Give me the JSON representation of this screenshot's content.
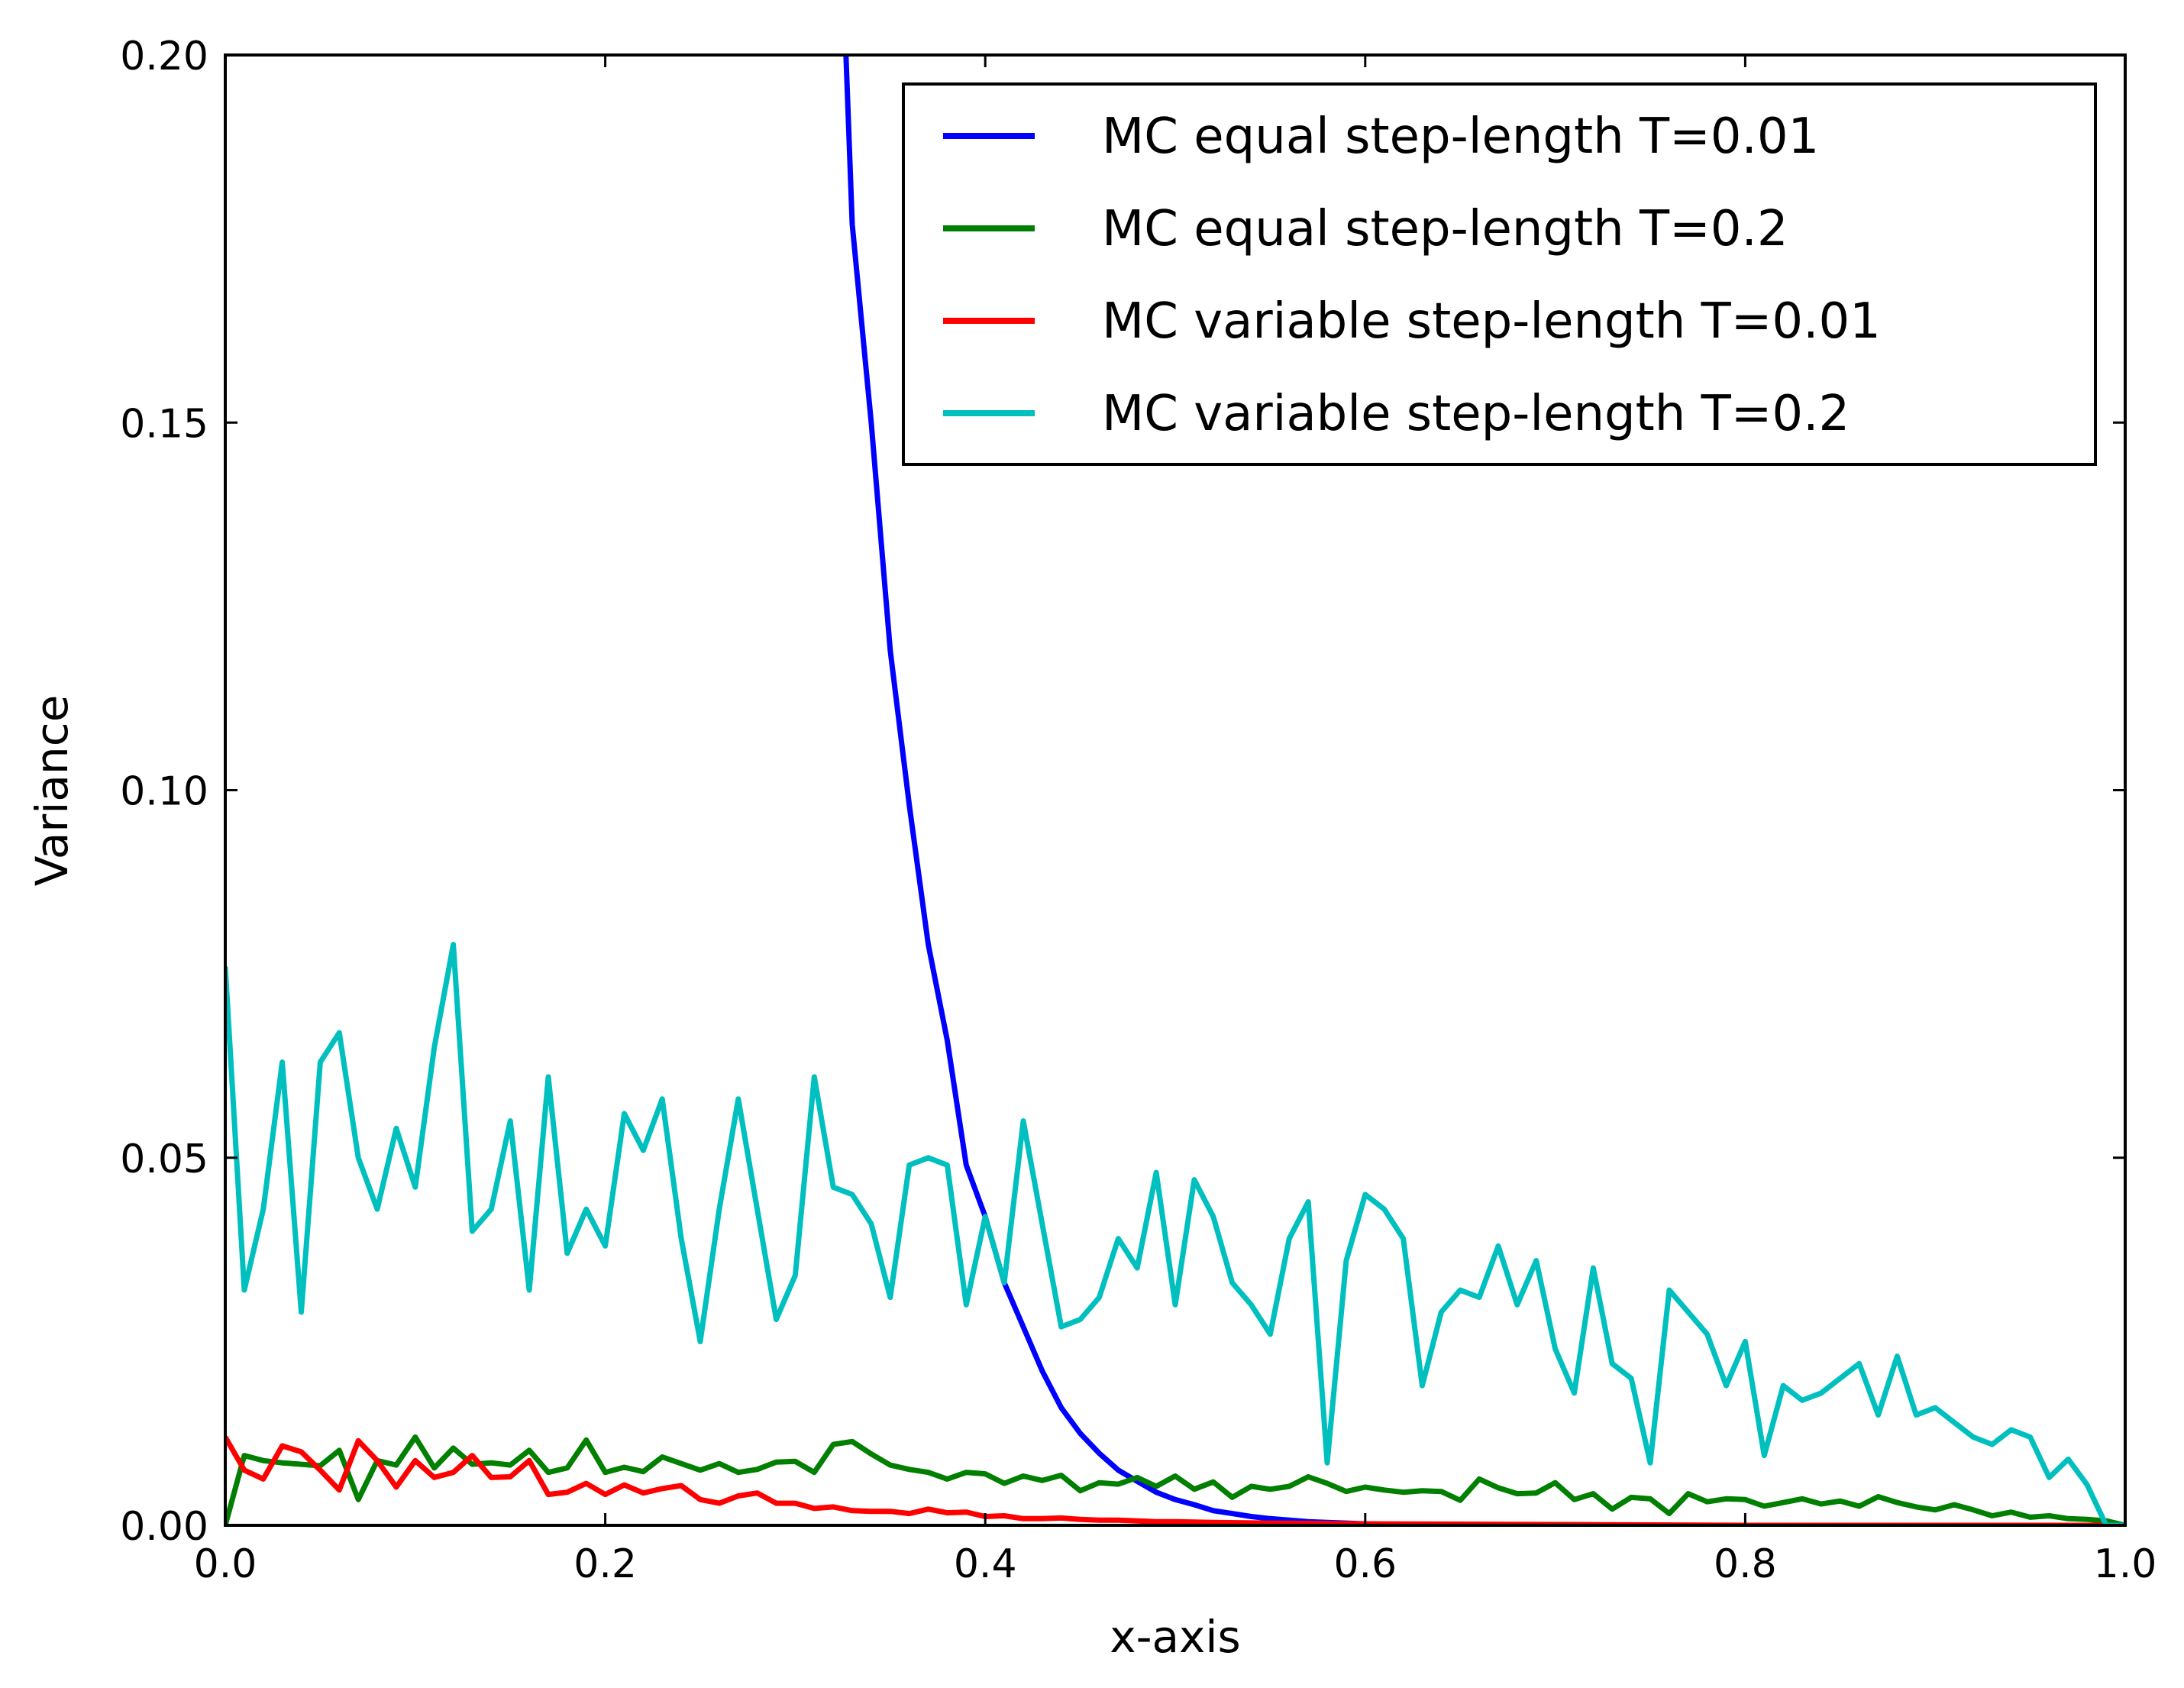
{
  "chart_data": {
    "type": "line",
    "title": "",
    "xlabel": "x-axis",
    "ylabel": "Variance",
    "xlim": [
      0.0,
      1.0
    ],
    "ylim": [
      0.0,
      0.2
    ],
    "x_ticks": [
      "0.0",
      "0.2",
      "0.4",
      "0.6",
      "0.8",
      "1.0"
    ],
    "y_ticks": [
      "0.00",
      "0.05",
      "0.10",
      "0.15",
      "0.20"
    ],
    "grid": false,
    "legend_position": "top-right",
    "series": [
      {
        "name": "MC equal step-length T=0.01",
        "color": "#0000ff",
        "x": [
          0.3267,
          0.33,
          0.34,
          0.35,
          0.36,
          0.37,
          0.38,
          0.39,
          0.4,
          0.41,
          0.42,
          0.43,
          0.44,
          0.45,
          0.46,
          0.47,
          0.48,
          0.49,
          0.5,
          0.51,
          0.52,
          0.53,
          0.54,
          0.55,
          0.56,
          0.57,
          0.58,
          0.59,
          0.6,
          0.62,
          0.65,
          0.7,
          0.8,
          0.9,
          1.0
        ],
        "y": [
          0.2,
          0.177,
          0.15,
          0.119,
          0.098,
          0.079,
          0.066,
          0.049,
          0.042,
          0.033,
          0.027,
          0.021,
          0.016,
          0.0125,
          0.0098,
          0.0075,
          0.006,
          0.0045,
          0.0035,
          0.0028,
          0.002,
          0.0016,
          0.0012,
          0.0009,
          0.0007,
          0.0005,
          0.0004,
          0.0003,
          0.0002,
          0.0001,
          5e-05,
          0.0,
          0.0,
          0.0,
          0.0
        ]
      },
      {
        "name": "MC equal step-length T=0.2",
        "color": "#007f00",
        "x": [
          0.0,
          0.01,
          0.02,
          0.03,
          0.04,
          0.05,
          0.06,
          0.07,
          0.08,
          0.09,
          0.1,
          0.11,
          0.12,
          0.13,
          0.14,
          0.15,
          0.16,
          0.17,
          0.18,
          0.19,
          0.2,
          0.21,
          0.22,
          0.23,
          0.24,
          0.25,
          0.26,
          0.27,
          0.28,
          0.29,
          0.3,
          0.31,
          0.32,
          0.33,
          0.34,
          0.35,
          0.36,
          0.37,
          0.38,
          0.39,
          0.4,
          0.41,
          0.42,
          0.43,
          0.44,
          0.45,
          0.46,
          0.47,
          0.48,
          0.49,
          0.5,
          0.51,
          0.52,
          0.53,
          0.54,
          0.55,
          0.56,
          0.57,
          0.58,
          0.59,
          0.6,
          0.61,
          0.62,
          0.63,
          0.64,
          0.65,
          0.66,
          0.67,
          0.68,
          0.69,
          0.7,
          0.71,
          0.72,
          0.73,
          0.74,
          0.75,
          0.76,
          0.77,
          0.78,
          0.79,
          0.8,
          0.81,
          0.82,
          0.83,
          0.84,
          0.85,
          0.86,
          0.87,
          0.88,
          0.89,
          0.9,
          0.91,
          0.92,
          0.93,
          0.94,
          0.95,
          0.96,
          0.97,
          0.98,
          0.99,
          1.0
        ],
        "y": [
          0.0,
          0.0095,
          0.0088,
          0.0085,
          0.0083,
          0.0081,
          0.0102,
          0.0035,
          0.0088,
          0.0082,
          0.012,
          0.0078,
          0.0105,
          0.0083,
          0.0085,
          0.0082,
          0.0102,
          0.0072,
          0.0078,
          0.0116,
          0.0072,
          0.0079,
          0.0073,
          0.0093,
          0.0084,
          0.0075,
          0.0084,
          0.0072,
          0.0076,
          0.0086,
          0.0087,
          0.0072,
          0.011,
          0.0114,
          0.0097,
          0.0082,
          0.0076,
          0.0072,
          0.0063,
          0.0072,
          0.007,
          0.0057,
          0.0067,
          0.0061,
          0.0068,
          0.0047,
          0.0058,
          0.0056,
          0.0065,
          0.0053,
          0.0067,
          0.0049,
          0.0059,
          0.0038,
          0.0053,
          0.0049,
          0.0053,
          0.0066,
          0.0057,
          0.0046,
          0.0052,
          0.0048,
          0.0045,
          0.0047,
          0.0046,
          0.0034,
          0.0063,
          0.0051,
          0.0043,
          0.0044,
          0.0058,
          0.0035,
          0.0043,
          0.0022,
          0.0038,
          0.0036,
          0.0016,
          0.0043,
          0.0032,
          0.0036,
          0.0035,
          0.0026,
          0.0031,
          0.0036,
          0.0029,
          0.0033,
          0.0026,
          0.0039,
          0.0031,
          0.0025,
          0.0021,
          0.0028,
          0.0021,
          0.0013,
          0.0018,
          0.0011,
          0.0013,
          0.0009,
          0.0008,
          0.0006,
          0.0
        ]
      },
      {
        "name": "MC variable step-length T=0.01",
        "color": "#ff0000",
        "x": [
          0.0,
          0.01,
          0.02,
          0.03,
          0.04,
          0.05,
          0.06,
          0.07,
          0.08,
          0.09,
          0.1,
          0.11,
          0.12,
          0.13,
          0.14,
          0.15,
          0.16,
          0.17,
          0.18,
          0.19,
          0.2,
          0.21,
          0.22,
          0.23,
          0.24,
          0.25,
          0.26,
          0.27,
          0.28,
          0.29,
          0.3,
          0.31,
          0.32,
          0.33,
          0.34,
          0.35,
          0.36,
          0.37,
          0.38,
          0.39,
          0.4,
          0.41,
          0.42,
          0.43,
          0.44,
          0.45,
          0.46,
          0.47,
          0.48,
          0.49,
          0.5,
          0.52,
          0.55,
          0.6,
          0.7,
          0.8,
          0.9,
          1.0
        ],
        "y": [
          0.012,
          0.0075,
          0.0063,
          0.0108,
          0.01,
          0.0075,
          0.0048,
          0.0115,
          0.0088,
          0.0052,
          0.0088,
          0.0065,
          0.0072,
          0.0095,
          0.0065,
          0.0066,
          0.0088,
          0.0042,
          0.0045,
          0.0057,
          0.0042,
          0.0055,
          0.0044,
          0.005,
          0.0054,
          0.0035,
          0.003,
          0.004,
          0.0044,
          0.003,
          0.003,
          0.0023,
          0.0025,
          0.002,
          0.0019,
          0.0019,
          0.0016,
          0.0022,
          0.0017,
          0.0018,
          0.0012,
          0.0013,
          0.0009,
          0.0009,
          0.001,
          0.0008,
          0.0007,
          0.0007,
          0.0006,
          0.0005,
          0.0005,
          0.0004,
          0.0003,
          0.0002,
          0.0001,
          0.0,
          0.0,
          0.0
        ]
      },
      {
        "name": "MC variable step-length T=0.2",
        "color": "#00bfbf",
        "x": [
          0.0,
          0.01,
          0.02,
          0.03,
          0.04,
          0.05,
          0.06,
          0.07,
          0.08,
          0.09,
          0.1,
          0.11,
          0.12,
          0.13,
          0.14,
          0.15,
          0.16,
          0.17,
          0.18,
          0.19,
          0.2,
          0.21,
          0.22,
          0.23,
          0.24,
          0.25,
          0.26,
          0.27,
          0.28,
          0.29,
          0.3,
          0.31,
          0.32,
          0.33,
          0.34,
          0.35,
          0.36,
          0.37,
          0.38,
          0.39,
          0.4,
          0.41,
          0.42,
          0.43,
          0.44,
          0.45,
          0.46,
          0.47,
          0.48,
          0.49,
          0.5,
          0.51,
          0.52,
          0.53,
          0.54,
          0.55,
          0.56,
          0.57,
          0.58,
          0.59,
          0.6,
          0.61,
          0.62,
          0.63,
          0.64,
          0.65,
          0.66,
          0.67,
          0.68,
          0.69,
          0.7,
          0.71,
          0.72,
          0.73,
          0.74,
          0.75,
          0.76,
          0.77,
          0.78,
          0.79,
          0.8,
          0.81,
          0.82,
          0.83,
          0.84,
          0.85,
          0.86,
          0.87,
          0.88,
          0.89,
          0.9,
          0.91,
          0.92,
          0.93,
          0.94,
          0.95,
          0.96,
          0.97,
          0.98,
          0.99,
          1.0
        ],
        "y": [
          0.076,
          0.032,
          0.043,
          0.063,
          0.029,
          0.063,
          0.067,
          0.05,
          0.043,
          0.054,
          0.046,
          0.065,
          0.079,
          0.04,
          0.043,
          0.055,
          0.032,
          0.061,
          0.037,
          0.043,
          0.038,
          0.056,
          0.051,
          0.058,
          0.039,
          0.025,
          0.043,
          0.058,
          0.043,
          0.028,
          0.034,
          0.061,
          0.046,
          0.045,
          0.041,
          0.031,
          0.049,
          0.05,
          0.049,
          0.03,
          0.042,
          0.033,
          0.055,
          0.041,
          0.027,
          0.028,
          0.031,
          0.039,
          0.035,
          0.048,
          0.03,
          0.047,
          0.042,
          0.033,
          0.03,
          0.026,
          0.039,
          0.044,
          0.0085,
          0.036,
          0.045,
          0.043,
          0.039,
          0.019,
          0.029,
          0.032,
          0.031,
          0.038,
          0.03,
          0.036,
          0.024,
          0.018,
          0.035,
          0.022,
          0.02,
          0.0085,
          0.032,
          0.029,
          0.026,
          0.019,
          0.025,
          0.0095,
          0.019,
          0.017,
          0.018,
          0.02,
          0.022,
          0.015,
          0.023,
          0.015,
          0.016,
          0.014,
          0.012,
          0.011,
          0.013,
          0.012,
          0.0065,
          0.009,
          0.0055,
          0.0,
          0.0
        ]
      }
    ]
  }
}
